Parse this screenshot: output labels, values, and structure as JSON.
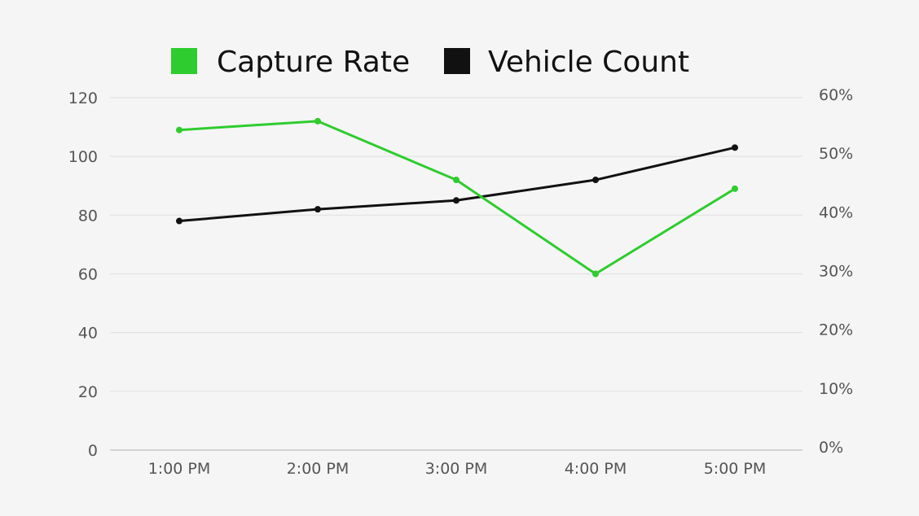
{
  "chart_data": {
    "type": "line",
    "title": "",
    "xlabel": "",
    "ylabel": "",
    "categories": [
      "1:00 PM",
      "2:00 PM",
      "3:00 PM",
      "4:00 PM",
      "5:00 PM"
    ],
    "y_left": {
      "min": 0,
      "max": 120,
      "ticks": [
        0,
        20,
        40,
        60,
        80,
        100,
        120
      ],
      "tick_labels": [
        "0",
        "20",
        "40",
        "60",
        "80",
        "100",
        "120"
      ]
    },
    "y_right": {
      "min": 0,
      "max": 60,
      "ticks": [
        0,
        10,
        20,
        30,
        40,
        50,
        60
      ],
      "tick_labels": [
        "0%",
        "10%",
        "20%",
        "30%",
        "40%",
        "50%",
        "60%"
      ]
    },
    "series": [
      {
        "name": "Capture Rate",
        "axis": "right",
        "unit": "%",
        "color": "#2ecc2e",
        "values": [
          54.5,
          56,
          46,
          30,
          44.5
        ]
      },
      {
        "name": "Vehicle Count",
        "axis": "left",
        "color": "#111111",
        "values": [
          78,
          82,
          85,
          92,
          103
        ]
      }
    ],
    "grid": true,
    "legend": "top-center"
  }
}
